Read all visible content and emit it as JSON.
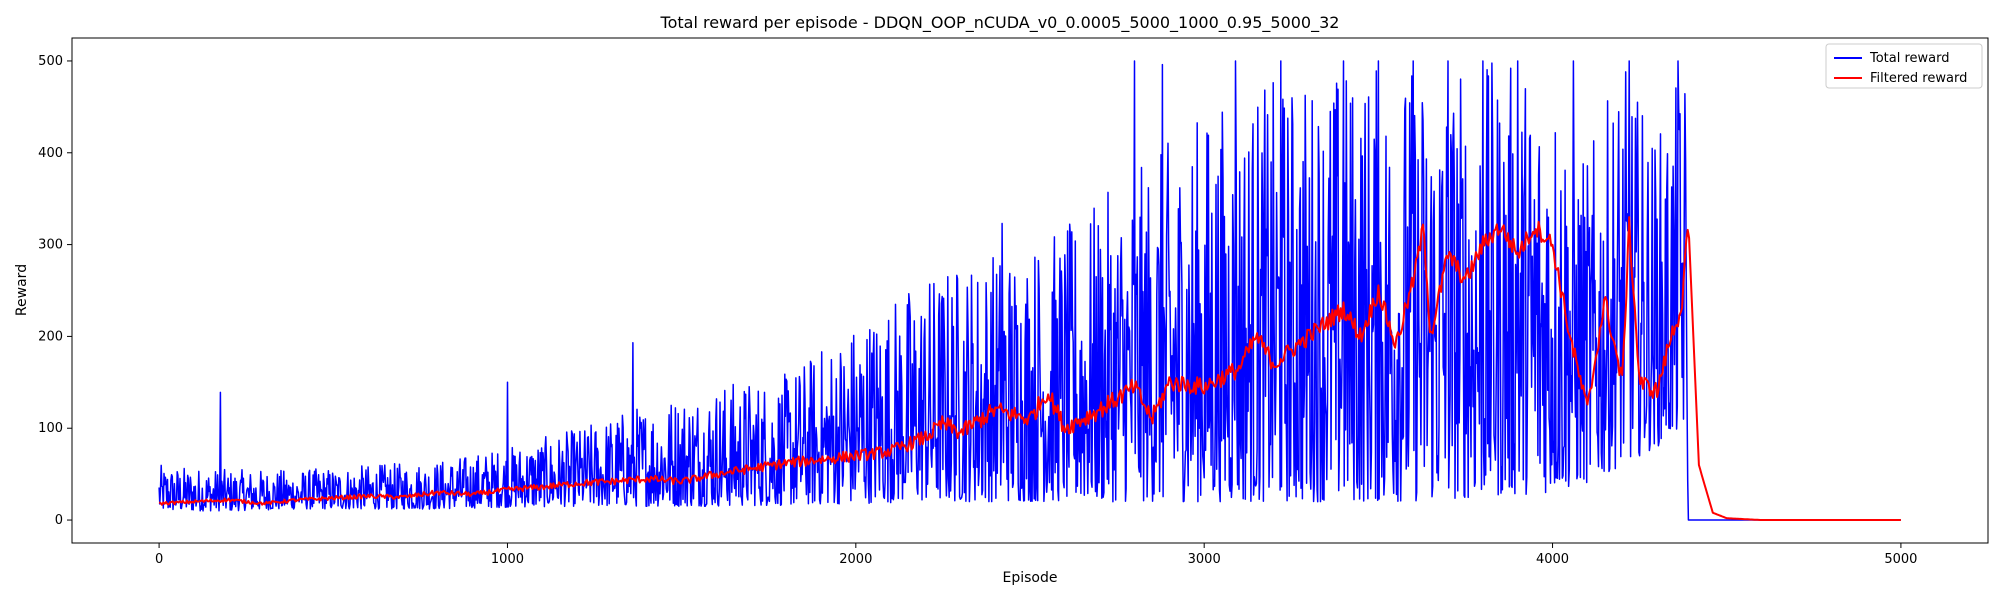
{
  "chart_data": {
    "type": "line",
    "title": "Total reward per episode - DDQN_OOP_nCUDA_v0_0.0005_5000_1000_0.95_5000_32",
    "xlabel": "Episode",
    "ylabel": "Reward",
    "xlim": [
      -250,
      5250
    ],
    "ylim": [
      -25,
      525
    ],
    "xticks": [
      0,
      1000,
      2000,
      3000,
      4000,
      5000
    ],
    "yticks": [
      0,
      100,
      200,
      300,
      400,
      500
    ],
    "grid": false,
    "legend_position": "top-right",
    "series": [
      {
        "name": "Total reward",
        "color": "#0000ff",
        "description": "Noisy per-episode reward, rising from ~20 to spikes near 500, dropping to 0 after episode ~4390",
        "envelope_x": [
          0,
          200,
          400,
          600,
          800,
          1000,
          1200,
          1400,
          1600,
          1800,
          2000,
          2200,
          2400,
          2600,
          2800,
          3000,
          3200,
          3400,
          3600,
          3800,
          4000,
          4100,
          4200,
          4300,
          4385,
          4390,
          5000
        ],
        "envelope_low": [
          10,
          10,
          12,
          12,
          12,
          14,
          15,
          15,
          15,
          16,
          18,
          20,
          20,
          20,
          20,
          20,
          20,
          20,
          20,
          25,
          30,
          40,
          60,
          80,
          100,
          0,
          0
        ],
        "envelope_high": [
          60,
          55,
          55,
          60,
          65,
          80,
          100,
          130,
          150,
          160,
          220,
          270,
          300,
          320,
          380,
          450,
          480,
          500,
          500,
          500,
          500,
          400,
          500,
          420,
          500,
          0,
          0
        ],
        "spikes": [
          [
            175,
            139
          ],
          [
            1000,
            150
          ],
          [
            1360,
            193
          ],
          [
            2420,
            323
          ],
          [
            2800,
            500
          ],
          [
            2880,
            496
          ],
          [
            3090,
            500
          ],
          [
            3220,
            500
          ],
          [
            3400,
            500
          ],
          [
            3500,
            500
          ],
          [
            3600,
            500
          ],
          [
            3700,
            500
          ],
          [
            3800,
            500
          ],
          [
            3900,
            500
          ],
          [
            4060,
            500
          ],
          [
            4220,
            500
          ],
          [
            4360,
            500
          ]
        ]
      },
      {
        "name": "Filtered reward",
        "color": "#ff0000",
        "description": "Smoothed reward trend",
        "x": [
          0,
          100,
          200,
          300,
          400,
          500,
          600,
          700,
          800,
          900,
          1000,
          1100,
          1200,
          1300,
          1400,
          1500,
          1600,
          1700,
          1800,
          1900,
          2000,
          2100,
          2200,
          2250,
          2300,
          2400,
          2500,
          2550,
          2600,
          2700,
          2800,
          2850,
          2900,
          3000,
          3100,
          3150,
          3200,
          3300,
          3400,
          3450,
          3500,
          3550,
          3600,
          3630,
          3650,
          3700,
          3750,
          3800,
          3850,
          3900,
          3950,
          4000,
          4050,
          4100,
          4150,
          4200,
          4220,
          4250,
          4300,
          4340,
          4370,
          4390,
          4420,
          4460,
          4500,
          4600,
          4800,
          5000
        ],
        "y": [
          18,
          20,
          22,
          18,
          22,
          24,
          26,
          25,
          30,
          28,
          33,
          36,
          40,
          42,
          45,
          42,
          50,
          56,
          62,
          66,
          70,
          75,
          90,
          105,
          95,
          120,
          110,
          140,
          100,
          120,
          145,
          110,
          150,
          145,
          165,
          200,
          170,
          200,
          230,
          200,
          250,
          190,
          260,
          320,
          200,
          290,
          260,
          300,
          320,
          290,
          320,
          300,
          200,
          120,
          240,
          150,
          320,
          150,
          140,
          200,
          230,
          325,
          60,
          8,
          2,
          0,
          0,
          0
        ]
      }
    ]
  }
}
